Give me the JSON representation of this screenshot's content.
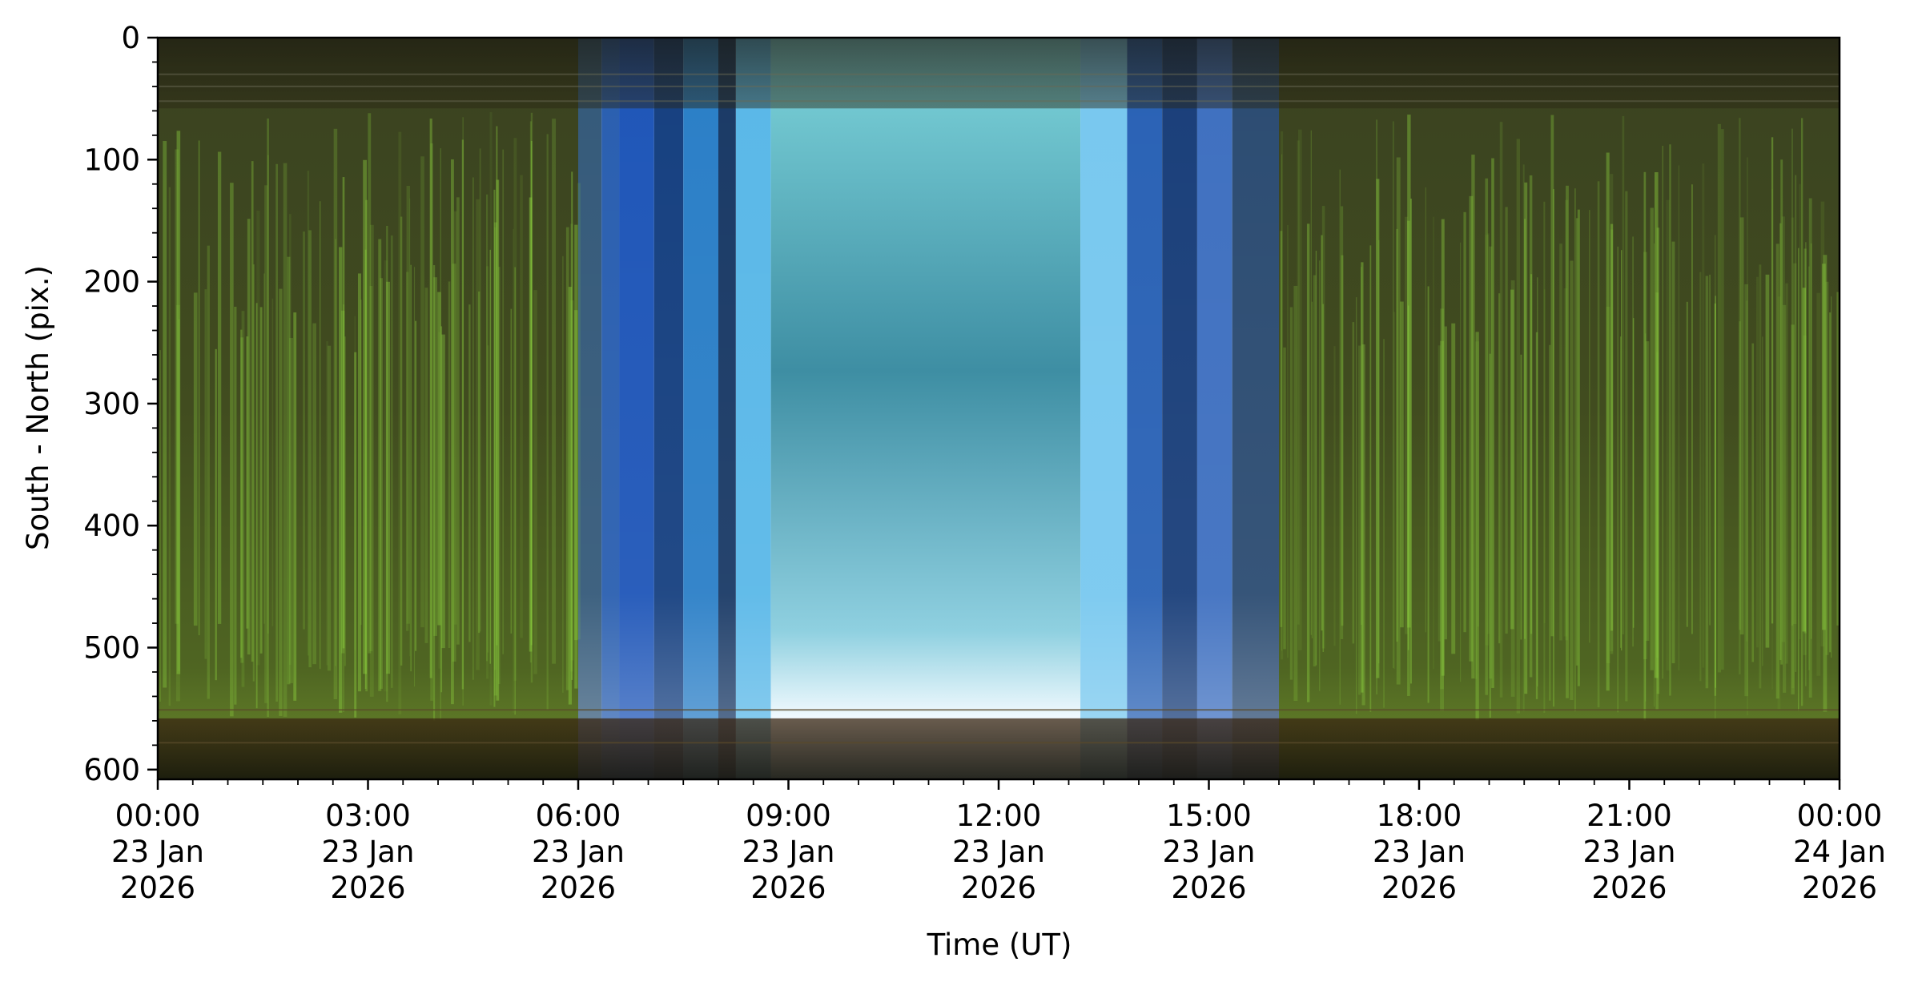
{
  "chart_data": {
    "type": "heatmap",
    "title": "",
    "xlabel": "Time (UT)",
    "ylabel": "South - North (pix.)",
    "xlim": [
      "2026-01-23 00:00",
      "2026-01-24 00:00"
    ],
    "ylim": [
      608,
      0
    ],
    "x_ticks": [
      {
        "time": "2026-01-23 00:00",
        "lines": [
          "00:00",
          "23 Jan",
          "2026"
        ]
      },
      {
        "time": "2026-01-23 03:00",
        "lines": [
          "03:00",
          "23 Jan",
          "2026"
        ]
      },
      {
        "time": "2026-01-23 06:00",
        "lines": [
          "06:00",
          "23 Jan",
          "2026"
        ]
      },
      {
        "time": "2026-01-23 09:00",
        "lines": [
          "09:00",
          "23 Jan",
          "2026"
        ]
      },
      {
        "time": "2026-01-23 12:00",
        "lines": [
          "12:00",
          "23 Jan",
          "2026"
        ]
      },
      {
        "time": "2026-01-23 15:00",
        "lines": [
          "15:00",
          "23 Jan",
          "2026"
        ]
      },
      {
        "time": "2026-01-23 18:00",
        "lines": [
          "18:00",
          "23 Jan",
          "2026"
        ]
      },
      {
        "time": "2026-01-23 21:00",
        "lines": [
          "21:00",
          "23 Jan",
          "2026"
        ]
      },
      {
        "time": "2026-01-24 00:00",
        "lines": [
          "00:00",
          "24 Jan",
          "2026"
        ]
      }
    ],
    "y_ticks": [
      0,
      100,
      200,
      300,
      400,
      500,
      600
    ],
    "x_minor_tick_interval_minutes": 30,
    "y_minor_tick_interval": 20,
    "grid": false,
    "legend": "none",
    "image_bands": [
      {
        "start": "2026-01-23 00:00",
        "end": "2026-01-23 06:00",
        "phase": "night",
        "color": "#3f4a1c"
      },
      {
        "start": "2026-01-23 06:00",
        "end": "2026-01-23 06:20",
        "phase": "twilight",
        "color": "#355a7a"
      },
      {
        "start": "2026-01-23 06:20",
        "end": "2026-01-23 06:35",
        "phase": "twilight",
        "color": "#2a5fb0"
      },
      {
        "start": "2026-01-23 06:35",
        "end": "2026-01-23 07:05",
        "phase": "twilight",
        "color": "#1f56b8"
      },
      {
        "start": "2026-01-23 07:05",
        "end": "2026-01-23 07:30",
        "phase": "twilight",
        "color": "#164080"
      },
      {
        "start": "2026-01-23 07:30",
        "end": "2026-01-23 08:00",
        "phase": "twilight",
        "color": "#2b7fc7"
      },
      {
        "start": "2026-01-23 08:00",
        "end": "2026-01-23 08:15",
        "phase": "twilight",
        "color": "#1a3a66"
      },
      {
        "start": "2026-01-23 08:15",
        "end": "2026-01-23 08:45",
        "phase": "twilight",
        "color": "#5ab8e8"
      },
      {
        "start": "2026-01-23 08:45",
        "end": "2026-01-23 13:10",
        "phase": "day",
        "color": "#3d8fa3"
      },
      {
        "start": "2026-01-23 13:10",
        "end": "2026-01-23 13:50",
        "phase": "twilight",
        "color": "#78c8ef"
      },
      {
        "start": "2026-01-23 13:50",
        "end": "2026-01-23 14:20",
        "phase": "twilight",
        "color": "#2a62b5"
      },
      {
        "start": "2026-01-23 14:20",
        "end": "2026-01-23 14:50",
        "phase": "twilight",
        "color": "#1a3f7a"
      },
      {
        "start": "2026-01-23 14:50",
        "end": "2026-01-23 15:20",
        "phase": "twilight",
        "color": "#3f70c0"
      },
      {
        "start": "2026-01-23 15:20",
        "end": "2026-01-23 16:00",
        "phase": "twilight",
        "color": "#2c4c72"
      },
      {
        "start": "2026-01-23 16:00",
        "end": "2026-01-24 00:00",
        "phase": "night",
        "color": "#3d4a1c"
      }
    ],
    "aurora_color": "#8fd640",
    "horizon_color": "#3a2a14"
  }
}
